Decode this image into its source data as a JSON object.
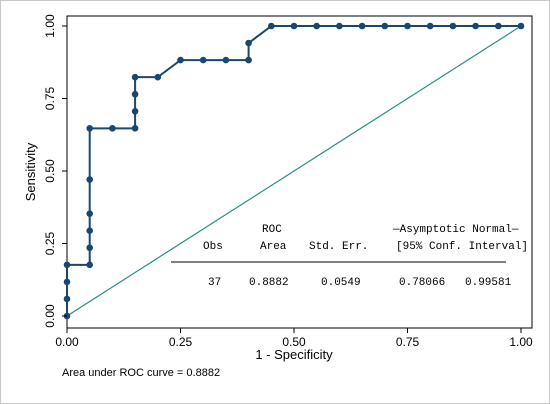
{
  "chart_data": {
    "type": "line",
    "xlabel": "1 - Specificity",
    "ylabel": "Sensitivity",
    "xlim": [
      0,
      1
    ],
    "ylim": [
      0,
      1
    ],
    "x_ticks": [
      "0.00",
      "0.25",
      "0.50",
      "0.75",
      "1.00"
    ],
    "y_ticks": [
      "0.00",
      "0.25",
      "0.50",
      "0.75",
      "1.00"
    ],
    "grid": false,
    "colors": {
      "roc": "#1a476f",
      "reference": "#2a8a82"
    },
    "series": [
      {
        "values": [
          [
            0.0,
            0.0
          ],
          [
            0.0,
            0.0588
          ],
          [
            0.0,
            0.1176
          ],
          [
            0.0,
            0.1765
          ],
          [
            0.05,
            0.1765
          ],
          [
            0.05,
            0.2353
          ],
          [
            0.05,
            0.2941
          ],
          [
            0.05,
            0.3529
          ],
          [
            0.05,
            0.4706
          ],
          [
            0.05,
            0.6471
          ],
          [
            0.1,
            0.6471
          ],
          [
            0.15,
            0.6471
          ],
          [
            0.15,
            0.7059
          ],
          [
            0.15,
            0.7647
          ],
          [
            0.15,
            0.8235
          ],
          [
            0.2,
            0.8235
          ],
          [
            0.25,
            0.8824
          ],
          [
            0.3,
            0.8824
          ],
          [
            0.35,
            0.8824
          ],
          [
            0.4,
            0.8824
          ],
          [
            0.4,
            0.9412
          ],
          [
            0.45,
            1.0
          ],
          [
            0.5,
            1.0
          ],
          [
            0.55,
            1.0
          ],
          [
            0.6,
            1.0
          ],
          [
            0.65,
            1.0
          ],
          [
            0.7,
            1.0
          ],
          [
            0.75,
            1.0
          ],
          [
            0.8,
            1.0
          ],
          [
            0.85,
            1.0
          ],
          [
            0.9,
            1.0
          ],
          [
            0.95,
            1.0
          ],
          [
            1.0,
            1.0
          ]
        ]
      },
      {
        "values": [
          [
            0,
            0
          ],
          [
            1,
            1
          ]
        ]
      }
    ],
    "stats_table": {
      "header1": {
        "roc": "ROC",
        "asym": "—Asymptotic Normal—"
      },
      "header2": {
        "obs": "Obs",
        "area": "Area",
        "se": "Std. Err.",
        "ci": "[95% Conf. Interval]"
      },
      "row": {
        "obs": "37",
        "area": "0.8882",
        "se": "0.0549",
        "lo": "0.78066",
        "hi": "0.99581"
      }
    },
    "note": "Area under ROC curve = 0.8882"
  }
}
